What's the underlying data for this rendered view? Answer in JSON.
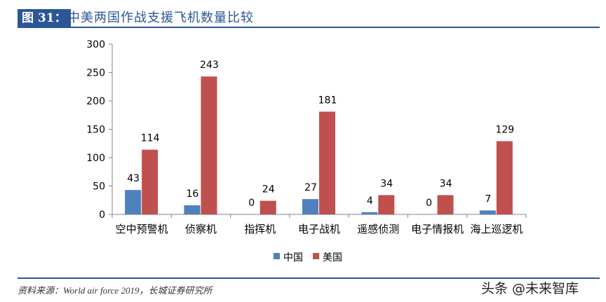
{
  "header": {
    "figure_label": "图 31：",
    "title": "中美两国作战支援飞机数量比较"
  },
  "footer": {
    "source": "资料来源：World air force 2019，长城证券研究所",
    "watermark": "头条 @未来智库"
  },
  "chart_data": {
    "type": "bar",
    "categories": [
      "空中预警机",
      "侦察机",
      "指挥机",
      "电子战机",
      "遥感侦测",
      "电子情报机",
      "海上巡逻机"
    ],
    "series": [
      {
        "name": "中国",
        "color": "#4f81bd",
        "values": [
          43,
          16,
          0,
          27,
          4,
          0,
          7
        ]
      },
      {
        "name": "美国",
        "color": "#c0504d",
        "values": [
          114,
          243,
          24,
          181,
          34,
          34,
          129
        ]
      }
    ],
    "ylim": [
      0,
      300
    ],
    "yticks": [
      0,
      50,
      100,
      150,
      200,
      250,
      300
    ],
    "grid": false,
    "legend": "bottom",
    "data_labels": true
  }
}
